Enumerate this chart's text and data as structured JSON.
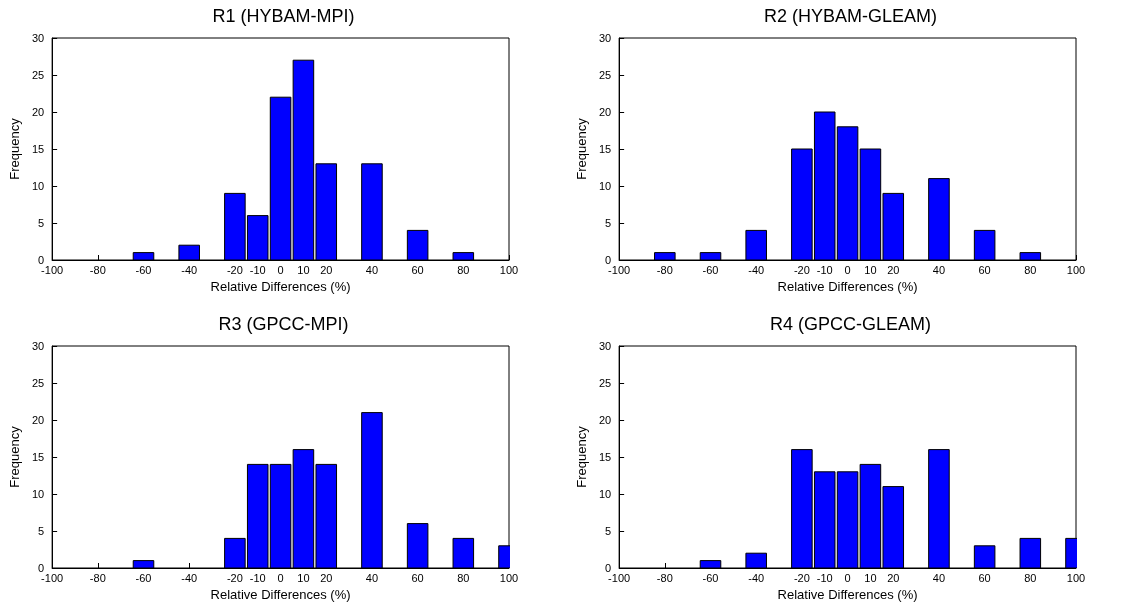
{
  "chart_data": [
    {
      "type": "bar",
      "title": "R1 (HYBAM-MPI)",
      "xlabel": "Relative Differences (%)",
      "ylabel": "Frequency",
      "x": [
        -60,
        -40,
        -20,
        -10,
        0,
        10,
        20,
        40,
        60,
        80
      ],
      "values": [
        1,
        2,
        9,
        6,
        22,
        27,
        13,
        13,
        4,
        1
      ],
      "color": "#0000ff",
      "xlim": [
        -100,
        100
      ],
      "xticks": [
        -100,
        -80,
        -60,
        -40,
        -20,
        -10,
        0,
        10,
        20,
        40,
        60,
        80,
        100
      ],
      "ylim": [
        0,
        30
      ],
      "yticks": [
        0,
        5,
        10,
        15,
        20,
        25,
        30
      ],
      "grid": false
    },
    {
      "type": "bar",
      "title": "R2 (HYBAM-GLEAM)",
      "xlabel": "Relative Differences (%)",
      "ylabel": "Frequency",
      "x": [
        -80,
        -60,
        -40,
        -20,
        -10,
        0,
        10,
        20,
        40,
        60,
        80
      ],
      "values": [
        1,
        1,
        4,
        15,
        20,
        18,
        15,
        9,
        11,
        4,
        1
      ],
      "color": "#0000ff",
      "xlim": [
        -100,
        100
      ],
      "xticks": [
        -100,
        -80,
        -60,
        -40,
        -20,
        -10,
        0,
        10,
        20,
        40,
        60,
        80,
        100
      ],
      "ylim": [
        0,
        30
      ],
      "yticks": [
        0,
        5,
        10,
        15,
        20,
        25,
        30
      ],
      "grid": false
    },
    {
      "type": "bar",
      "title": "R3 (GPCC-MPI)",
      "xlabel": "Relative Differences (%)",
      "ylabel": "Frequency",
      "x": [
        -60,
        -20,
        -10,
        0,
        10,
        20,
        40,
        60,
        80,
        100
      ],
      "values": [
        1,
        4,
        14,
        14,
        16,
        14,
        21,
        6,
        4,
        3
      ],
      "color": "#0000ff",
      "xlim": [
        -100,
        100
      ],
      "xticks": [
        -100,
        -80,
        -60,
        -40,
        -20,
        -10,
        0,
        10,
        20,
        40,
        60,
        80,
        100
      ],
      "ylim": [
        0,
        30
      ],
      "yticks": [
        0,
        5,
        10,
        15,
        20,
        25,
        30
      ],
      "grid": false
    },
    {
      "type": "bar",
      "title": "R4 (GPCC-GLEAM)",
      "xlabel": "Relative Differences (%)",
      "ylabel": "Frequency",
      "x": [
        -60,
        -40,
        -20,
        -10,
        0,
        10,
        20,
        40,
        60,
        80,
        100
      ],
      "values": [
        1,
        2,
        16,
        13,
        13,
        14,
        11,
        16,
        3,
        4,
        4
      ],
      "color": "#0000ff",
      "xlim": [
        -100,
        100
      ],
      "xticks": [
        -100,
        -80,
        -60,
        -40,
        -20,
        -10,
        0,
        10,
        20,
        40,
        60,
        80,
        100
      ],
      "ylim": [
        0,
        30
      ],
      "yticks": [
        0,
        5,
        10,
        15,
        20,
        25,
        30
      ],
      "grid": false
    }
  ]
}
